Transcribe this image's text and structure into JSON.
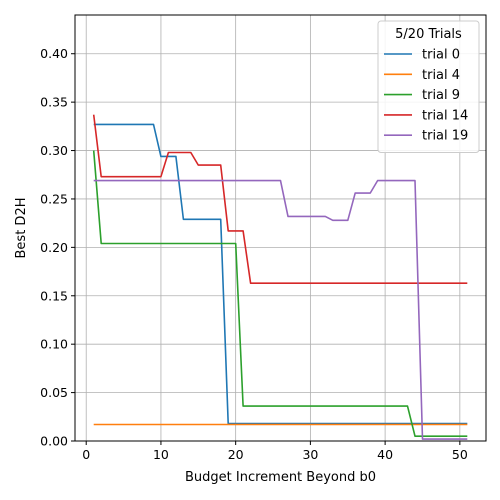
{
  "chart_data": {
    "type": "line",
    "title": "",
    "xlabel": "Budget Increment Beyond b0",
    "ylabel": "Best D2H",
    "xlim": [
      -1.5,
      53.5
    ],
    "ylim": [
      0,
      0.44
    ],
    "xticks": [
      "0",
      "10",
      "20",
      "30",
      "40",
      "50"
    ],
    "yticks": [
      "0.00",
      "0.05",
      "0.10",
      "0.15",
      "0.20",
      "0.25",
      "0.30",
      "0.35",
      "0.40"
    ],
    "grid": true,
    "legend": {
      "title": "5/20 Trials",
      "placement": "top-right"
    },
    "series": [
      {
        "name": "trial 0",
        "color": "#1f77b4",
        "points": [
          [
            1,
            0.327
          ],
          [
            9,
            0.327
          ],
          [
            10,
            0.294
          ],
          [
            12,
            0.294
          ],
          [
            13,
            0.229
          ],
          [
            18,
            0.229
          ],
          [
            19,
            0.018
          ],
          [
            51,
            0.018
          ]
        ]
      },
      {
        "name": "trial 4",
        "color": "#ff7f0e",
        "points": [
          [
            1,
            0.017
          ],
          [
            51,
            0.017
          ]
        ]
      },
      {
        "name": "trial 9",
        "color": "#2ca02c",
        "points": [
          [
            1,
            0.3
          ],
          [
            2,
            0.204
          ],
          [
            20,
            0.204
          ],
          [
            21,
            0.036
          ],
          [
            43,
            0.036
          ],
          [
            44,
            0.005
          ],
          [
            51,
            0.005
          ]
        ]
      },
      {
        "name": "trial 14",
        "color": "#d62728",
        "points": [
          [
            1,
            0.337
          ],
          [
            2,
            0.273
          ],
          [
            10,
            0.273
          ],
          [
            11,
            0.298
          ],
          [
            14,
            0.298
          ],
          [
            15,
            0.285
          ],
          [
            18,
            0.285
          ],
          [
            19,
            0.217
          ],
          [
            21,
            0.217
          ],
          [
            22,
            0.163
          ],
          [
            51,
            0.163
          ]
        ]
      },
      {
        "name": "trial 19",
        "color": "#9467bd",
        "points": [
          [
            1,
            0.269
          ],
          [
            26,
            0.269
          ],
          [
            27,
            0.232
          ],
          [
            32,
            0.232
          ],
          [
            33,
            0.228
          ],
          [
            35,
            0.228
          ],
          [
            36,
            0.256
          ],
          [
            38,
            0.256
          ],
          [
            39,
            0.269
          ],
          [
            44,
            0.269
          ],
          [
            45,
            0.002
          ],
          [
            51,
            0.002
          ]
        ]
      }
    ]
  }
}
